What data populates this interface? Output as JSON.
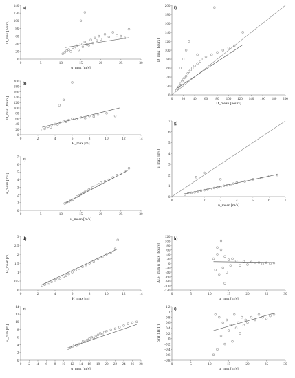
{
  "chart_data": [
    {
      "id": "a",
      "type": "scatter",
      "panel_label": "a)",
      "xlabel": "u_max [m/s]",
      "ylabel": "D_max [hours]",
      "xlim": [
        0,
        30
      ],
      "ylim": [
        0,
        140
      ],
      "xticks": [
        0,
        5,
        10,
        15,
        20,
        25,
        30
      ],
      "yticks": [
        0,
        20,
        40,
        60,
        80,
        100,
        120,
        140
      ],
      "x": [
        10.5,
        11,
        11.5,
        12,
        12.5,
        13,
        13.5,
        14,
        14.5,
        15,
        15.5,
        16,
        16.5,
        17,
        17.5,
        18,
        18.5,
        19,
        19.5,
        20,
        21,
        22,
        23,
        24,
        25,
        26,
        27,
        16,
        15
      ],
      "y": [
        14,
        18,
        22,
        25,
        20,
        30,
        28,
        35,
        24,
        40,
        32,
        45,
        38,
        36,
        50,
        42,
        55,
        48,
        60,
        52,
        65,
        58,
        70,
        62,
        60,
        55,
        78,
        122,
        100
      ],
      "trend": [
        [
          11,
          30
        ],
        [
          27,
          56
        ]
      ],
      "color": "#9a9a9a"
    },
    {
      "id": "b",
      "type": "scatter",
      "panel_label": "b)",
      "xlabel": "H_max [m]",
      "ylabel": "D_max [hours]",
      "xlim": [
        0,
        14
      ],
      "ylim": [
        0,
        200
      ],
      "xticks": [
        0,
        2,
        4,
        6,
        8,
        10,
        12,
        14
      ],
      "yticks": [
        0,
        20,
        40,
        60,
        80,
        100,
        120,
        140,
        160,
        180,
        200
      ],
      "x": [
        2.5,
        2.8,
        3,
        3.2,
        3.5,
        3.8,
        4,
        4.3,
        4.6,
        5,
        5.3,
        5.6,
        6,
        6.5,
        7,
        7.5,
        8,
        8.5,
        9,
        10,
        11,
        4.5,
        6,
        5
      ],
      "y": [
        18,
        22,
        25,
        30,
        28,
        35,
        40,
        38,
        45,
        50,
        48,
        55,
        60,
        58,
        65,
        62,
        70,
        68,
        75,
        80,
        70,
        110,
        195,
        130
      ],
      "trend": [
        [
          2.5,
          28
        ],
        [
          11.5,
          100
        ]
      ],
      "color": "#9a9a9a"
    },
    {
      "id": "c",
      "type": "scatter",
      "panel_label": "c)",
      "xlabel": "u_mean [m/s]",
      "ylabel": "u_mean [m/s]",
      "xlim": [
        0,
        30
      ],
      "ylim": [
        0,
        7
      ],
      "xticks": [
        0,
        5,
        10,
        15,
        20,
        25,
        30
      ],
      "yticks": [
        0,
        1,
        2,
        3,
        4,
        5,
        6,
        7
      ],
      "x": [
        11,
        11.5,
        12,
        12.5,
        13,
        13.5,
        14,
        14.5,
        15,
        15.5,
        16,
        16.5,
        17,
        17.5,
        18,
        18.5,
        19,
        19.5,
        20,
        21,
        22,
        23,
        24,
        25,
        26,
        27
      ],
      "y": [
        0.9,
        1.0,
        1.1,
        1.3,
        1.4,
        1.6,
        1.8,
        1.9,
        2.1,
        2.2,
        2.4,
        2.5,
        2.7,
        2.8,
        3.0,
        3.1,
        3.3,
        3.4,
        3.6,
        3.8,
        4.0,
        4.3,
        4.6,
        4.8,
        5.1,
        5.5
      ],
      "trend": [
        [
          11,
          0.9
        ],
        [
          27,
          5.3
        ]
      ],
      "color": "#9a9a9a"
    },
    {
      "id": "d",
      "type": "scatter",
      "panel_label": "d)",
      "xlabel": "H_max [m]",
      "ylabel": "H_mean [m]",
      "xlim": [
        0,
        14
      ],
      "ylim": [
        0,
        3
      ],
      "xticks": [
        0,
        2,
        4,
        6,
        8,
        10,
        12,
        14
      ],
      "yticks": [
        0,
        0.5,
        1,
        1.5,
        2,
        2.5,
        3
      ],
      "x": [
        2.5,
        2.8,
        3,
        3.3,
        3.6,
        4,
        4.3,
        4.6,
        5,
        5.3,
        5.6,
        6,
        6.4,
        6.8,
        7.2,
        7.6,
        8,
        8.5,
        9,
        9.5,
        10,
        10.5,
        11,
        11.3
      ],
      "y": [
        0.25,
        0.3,
        0.35,
        0.4,
        0.45,
        0.55,
        0.6,
        0.65,
        0.75,
        0.8,
        0.9,
        1.0,
        1.1,
        1.2,
        1.3,
        1.4,
        1.5,
        1.6,
        1.75,
        1.85,
        2.0,
        2.1,
        2.3,
        2.8
      ],
      "trend": [
        [
          2.5,
          0.3
        ],
        [
          11.3,
          2.3
        ]
      ],
      "color": "#9a9a9a"
    },
    {
      "id": "e",
      "type": "scatter",
      "panel_label": "e)",
      "xlabel": "u_max [m/s]",
      "ylabel": "H_max [m]",
      "xlim": [
        0,
        28
      ],
      "ylim": [
        0,
        14
      ],
      "xticks": [
        0,
        2,
        4,
        6,
        8,
        10,
        12,
        14,
        16,
        18,
        20,
        22,
        24,
        26,
        28
      ],
      "yticks": [
        0,
        2,
        4,
        6,
        8,
        10,
        12,
        14
      ],
      "x": [
        11,
        11.5,
        12,
        12.5,
        13,
        13.5,
        14,
        14.5,
        15,
        15.5,
        16,
        16.5,
        17,
        17.5,
        18,
        18.5,
        19,
        19.5,
        20,
        21,
        22,
        23,
        24,
        25,
        26,
        27
      ],
      "y": [
        3,
        3.2,
        3.5,
        4,
        3.8,
        4.2,
        4.5,
        5,
        4.8,
        5.3,
        5.6,
        6,
        5.8,
        6.3,
        6.6,
        7,
        6.8,
        7.3,
        7.6,
        8,
        8.2,
        8.6,
        9,
        9.5,
        9.8,
        10
      ],
      "trend": [
        [
          11,
          3.2
        ],
        [
          27,
          9.3
        ]
      ],
      "color": "#9a9a9a"
    },
    {
      "id": "f",
      "type": "scatter",
      "panel_label": "f)",
      "xlabel": "D_mean [hours]",
      "ylabel": "D_max [hours]",
      "xlim": [
        0,
        200
      ],
      "ylim": [
        0,
        200
      ],
      "xticks": [
        0,
        20,
        40,
        60,
        80,
        100,
        120,
        140,
        160,
        180,
        200
      ],
      "yticks": [
        0,
        20,
        40,
        60,
        80,
        100,
        120,
        140,
        160,
        180,
        200
      ],
      "x": [
        8,
        10,
        12,
        14,
        16,
        18,
        20,
        22,
        25,
        28,
        30,
        33,
        36,
        40,
        45,
        50,
        55,
        60,
        70,
        80,
        90,
        100,
        110,
        125,
        15,
        20,
        25,
        30,
        75,
        45
      ],
      "y": [
        10,
        14,
        18,
        22,
        26,
        30,
        34,
        38,
        42,
        48,
        52,
        56,
        60,
        65,
        70,
        75,
        80,
        85,
        90,
        95,
        100,
        105,
        110,
        140,
        60,
        80,
        100,
        120,
        195,
        90
      ],
      "trend": [
        [
          8,
          14
        ],
        [
          125,
          112
        ]
      ],
      "identity": [
        [
          0,
          0
        ],
        [
          200,
          200
        ]
      ],
      "color": "#9a9a9a"
    },
    {
      "id": "g",
      "type": "scatter",
      "panel_label": "g)",
      "xlabel": "u_mean [m/s]",
      "ylabel": "u_max [m/s]",
      "xlim": [
        0,
        7
      ],
      "ylim": [
        0,
        7
      ],
      "xticks": [
        0,
        1,
        2,
        3,
        4,
        5,
        6,
        7
      ],
      "yticks": [
        0,
        1,
        2,
        3,
        4,
        5,
        6,
        7
      ],
      "x": [
        0.8,
        1,
        1.2,
        1.4,
        1.6,
        1.8,
        2,
        2.2,
        2.4,
        2.6,
        2.8,
        3,
        3.2,
        3.4,
        3.6,
        3.8,
        4,
        4.5,
        5,
        5.5,
        6,
        6.5,
        2,
        1.5,
        3
      ],
      "y": [
        0.2,
        0.3,
        0.35,
        0.4,
        0.45,
        0.55,
        0.6,
        0.65,
        0.7,
        0.8,
        0.85,
        0.9,
        1.0,
        1.05,
        1.1,
        1.2,
        1.3,
        1.4,
        1.6,
        1.7,
        1.9,
        2.0,
        2.2,
        1.8,
        1.6
      ],
      "trend": [
        [
          0.8,
          0.25
        ],
        [
          6.5,
          2.05
        ]
      ],
      "identity": [
        [
          0,
          0
        ],
        [
          7,
          7
        ]
      ],
      "color": "#9a9a9a"
    },
    {
      "id": "h",
      "type": "scatter",
      "panel_label": "h)",
      "xlabel": "u_max [m/s]",
      "ylabel": "ΔI,H_max u_max [hours]",
      "xlim": [
        0,
        30
      ],
      "ylim": [
        -120,
        120
      ],
      "xticks": [
        0,
        5,
        10,
        15,
        20,
        25,
        30
      ],
      "yticks": [
        -120,
        -100,
        -80,
        -60,
        -40,
        -20,
        0,
        20,
        40,
        60,
        80,
        100,
        120
      ],
      "x": [
        11,
        11.5,
        12,
        12.5,
        13,
        13.5,
        14,
        14.5,
        15,
        15.5,
        16,
        17,
        18,
        19,
        20,
        21,
        22,
        23,
        24,
        25,
        26,
        27,
        13,
        14,
        12
      ],
      "y": [
        20,
        -30,
        40,
        -50,
        60,
        -20,
        30,
        -40,
        15,
        -10,
        20,
        10,
        -10,
        8,
        -6,
        5,
        -4,
        3,
        -3,
        2,
        -2,
        1,
        100,
        -90,
        70
      ],
      "trend": [
        [
          11,
          7
        ],
        [
          27,
          3
        ]
      ],
      "color": "#9a9a9a"
    },
    {
      "id": "i",
      "type": "scatter",
      "panel_label": "i)",
      "xlabel": "u_max [m/s]",
      "ylabel": "ρ (r(t),H(t))",
      "xlim": [
        0,
        30
      ],
      "ylim": [
        -0.8,
        1.2
      ],
      "xticks": [
        0,
        5,
        10,
        15,
        20,
        25,
        30
      ],
      "yticks": [
        -0.8,
        -0.6,
        -0.4,
        -0.2,
        0,
        0.2,
        0.4,
        0.6,
        0.8,
        1,
        1.2
      ],
      "x": [
        11,
        11.5,
        12,
        12.5,
        13,
        13.5,
        14,
        14.5,
        15,
        15.5,
        16,
        16.5,
        17,
        17.5,
        18,
        18.5,
        19,
        19.5,
        20,
        21,
        22,
        23,
        24,
        25,
        26,
        27
      ],
      "y": [
        -0.6,
        0.9,
        -0.4,
        0.8,
        0.1,
        0.6,
        -0.2,
        0.7,
        0.3,
        0.5,
        -0.1,
        0.9,
        0.4,
        0.6,
        0.2,
        0.8,
        0.5,
        0.7,
        0.6,
        0.8,
        0.7,
        0.9,
        0.8,
        0.75,
        0.85,
        0.9
      ],
      "trend": [
        [
          11,
          0.3
        ],
        [
          27,
          0.95
        ]
      ],
      "color": "#9a9a9a"
    }
  ]
}
